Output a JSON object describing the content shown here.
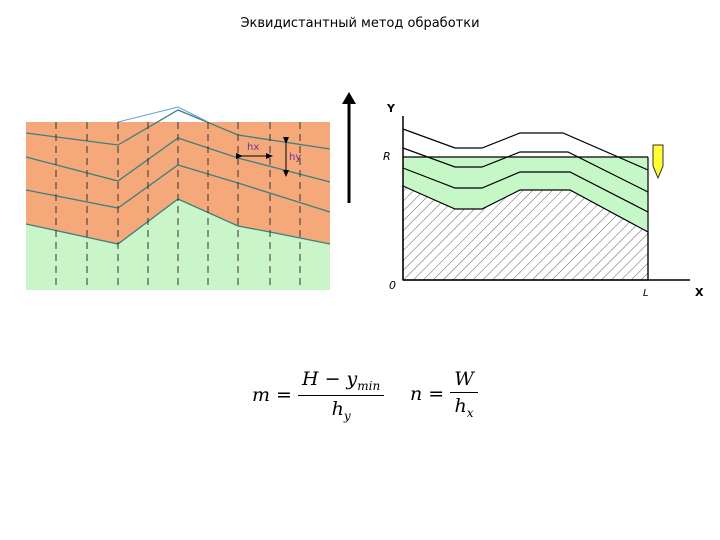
{
  "title": "Эквидистантный метод обработки",
  "left_diagram": {
    "label_hx": "hx",
    "label_hy": "hy",
    "colors": {
      "material": "#f5a97a",
      "part": "#c9f5c9",
      "line": "#3e7f80",
      "accent": "#6b2fa0"
    }
  },
  "right_diagram": {
    "axis_y": "Y",
    "axis_x": "X",
    "label_r": "R",
    "label_origin": "0",
    "label_l": "L",
    "colors": {
      "fill": "#c6f7c6",
      "tool": "#ffff33"
    }
  },
  "formula_m": {
    "lhs": "m =",
    "num_main": "H − y",
    "num_sub": "min",
    "den_main": "h",
    "den_sub": "y"
  },
  "formula_n": {
    "lhs": "n =",
    "num_main": "W",
    "den_main": "h",
    "den_sub": "x"
  }
}
